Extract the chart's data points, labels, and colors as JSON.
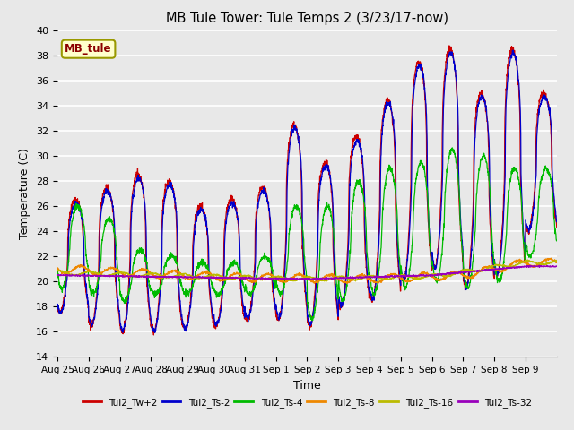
{
  "title": "MB Tule Tower: Tule Temps 2 (3/23/17-now)",
  "xlabel": "Time",
  "ylabel": "Temperature (C)",
  "ylim": [
    14,
    40
  ],
  "yticks": [
    14,
    16,
    18,
    20,
    22,
    24,
    26,
    28,
    30,
    32,
    34,
    36,
    38,
    40
  ],
  "bg_color": "#e8e8e8",
  "series": [
    {
      "name": "Tul2_Tw+2",
      "color": "#cc0000"
    },
    {
      "name": "Tul2_Ts-2",
      "color": "#0000cc"
    },
    {
      "name": "Tul2_Ts-4",
      "color": "#00bb00"
    },
    {
      "name": "Tul2_Ts-8",
      "color": "#ee8800"
    },
    {
      "name": "Tul2_Ts-16",
      "color": "#bbbb00"
    },
    {
      "name": "Tul2_Ts-32",
      "color": "#9900bb"
    }
  ],
  "xtick_labels": [
    "Aug 25",
    "Aug 26",
    "Aug 27",
    "Aug 28",
    "Aug 29",
    "Aug 30",
    "Aug 31",
    "Sep 1",
    "Sep 2",
    "Sep 3",
    "Sep 4",
    "Sep 5",
    "Sep 6",
    "Sep 7",
    "Sep 8",
    "Sep 9"
  ],
  "num_days": 16,
  "pts_per_day": 144
}
